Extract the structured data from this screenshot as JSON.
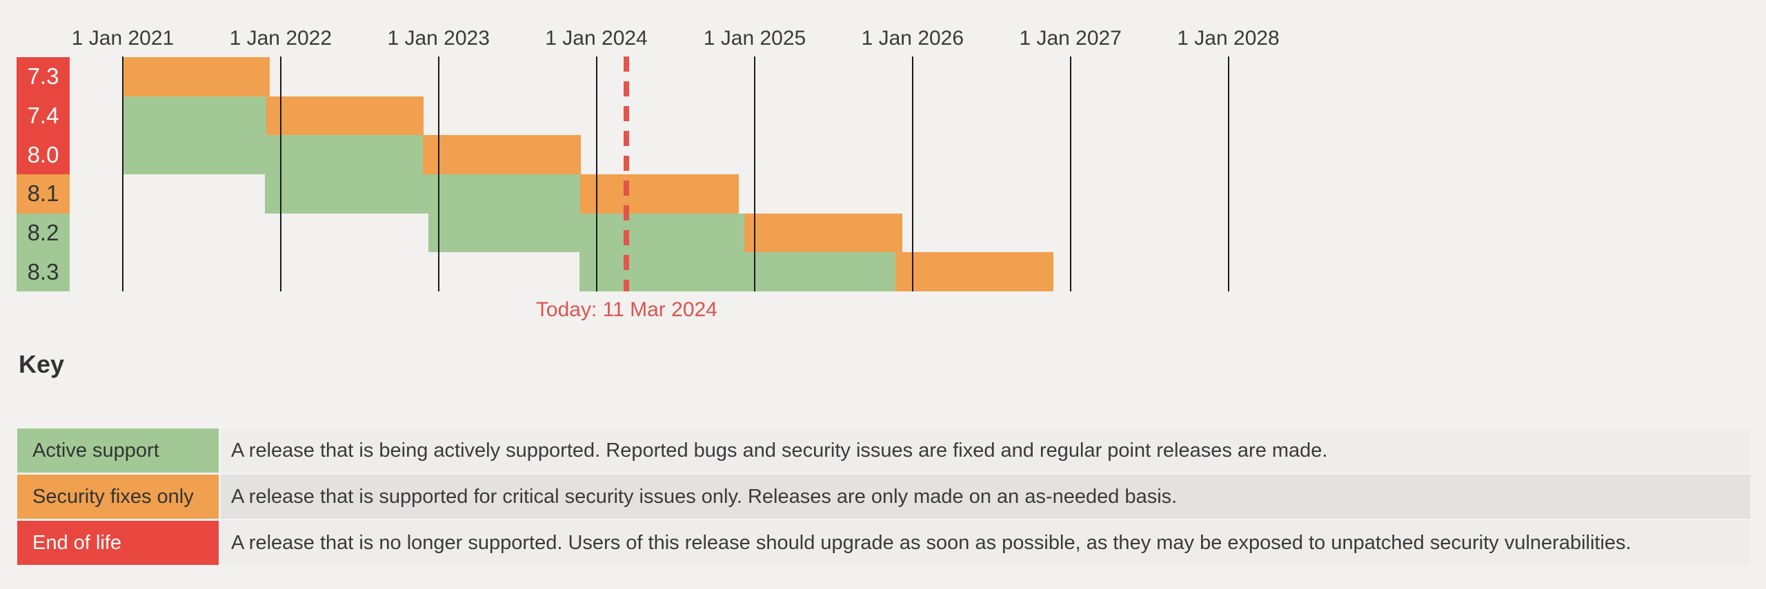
{
  "colors": {
    "page_background": "#f2f1ef",
    "active_green": "#a2c995",
    "security_orange": "#f0a04e",
    "eol_red": "#e8473f",
    "gridline": "#1b1b1b",
    "axis_text": "#3a3a3a",
    "dark_text": "#333333",
    "light_text": "#ffffff",
    "today_line": "#e4544b",
    "today_text": "#da544f",
    "key_desc_bg_light": "#eeedec",
    "key_desc_bg_dark": "#e3e2e1"
  },
  "chart_data": {
    "type": "gantt-timeline",
    "title": "",
    "x_axis": {
      "start_date": "2021-01-01",
      "end_date": "2028-01-01",
      "ticks": [
        {
          "label": "1 Jan 2021",
          "date": "2021-01-01"
        },
        {
          "label": "1 Jan 2022",
          "date": "2022-01-01"
        },
        {
          "label": "1 Jan 2023",
          "date": "2023-01-01"
        },
        {
          "label": "1 Jan 2024",
          "date": "2024-01-01"
        },
        {
          "label": "1 Jan 2025",
          "date": "2025-01-01"
        },
        {
          "label": "1 Jan 2026",
          "date": "2026-01-01"
        },
        {
          "label": "1 Jan 2027",
          "date": "2027-01-01"
        },
        {
          "label": "1 Jan 2028",
          "date": "2028-01-01"
        }
      ],
      "gridlines": true
    },
    "today_marker": {
      "label": "Today: 11 Mar 2024",
      "date": "2024-03-11"
    },
    "rows": [
      {
        "version": "7.3",
        "label_state": "end-of-life",
        "segments": [
          {
            "state": "security",
            "from": "2021-01-01",
            "to": "2021-12-06"
          }
        ]
      },
      {
        "version": "7.4",
        "label_state": "end-of-life",
        "segments": [
          {
            "state": "active",
            "from": "2021-01-01",
            "to": "2021-11-28"
          },
          {
            "state": "security",
            "from": "2021-11-28",
            "to": "2022-11-28"
          }
        ]
      },
      {
        "version": "8.0",
        "label_state": "end-of-life",
        "segments": [
          {
            "state": "active",
            "from": "2021-01-01",
            "to": "2022-11-26"
          },
          {
            "state": "security",
            "from": "2022-11-26",
            "to": "2023-11-26"
          }
        ]
      },
      {
        "version": "8.1",
        "label_state": "security",
        "segments": [
          {
            "state": "active",
            "from": "2021-11-25",
            "to": "2023-11-25"
          },
          {
            "state": "security",
            "from": "2023-11-25",
            "to": "2024-11-25"
          }
        ]
      },
      {
        "version": "8.2",
        "label_state": "active",
        "segments": [
          {
            "state": "active",
            "from": "2022-12-08",
            "to": "2024-12-08"
          },
          {
            "state": "security",
            "from": "2024-12-08",
            "to": "2025-12-08"
          }
        ]
      },
      {
        "version": "8.3",
        "label_state": "active",
        "segments": [
          {
            "state": "active",
            "from": "2023-11-23",
            "to": "2025-11-23"
          },
          {
            "state": "security",
            "from": "2025-11-23",
            "to": "2026-11-23"
          }
        ]
      }
    ]
  },
  "key": {
    "title": "Key",
    "entries": [
      {
        "label": "Active support",
        "state": "active",
        "description": "A release that is being actively supported. Reported bugs and security issues are fixed and regular point releases are made."
      },
      {
        "label": "Security fixes only",
        "state": "security",
        "description": "A release that is supported for critical security issues only. Releases are only made on an as-needed basis."
      },
      {
        "label": "End of life",
        "state": "end-of-life",
        "description": "A release that is no longer supported. Users of this release should upgrade as soon as possible, as they may be exposed to unpatched security vulnerabilities."
      }
    ]
  }
}
